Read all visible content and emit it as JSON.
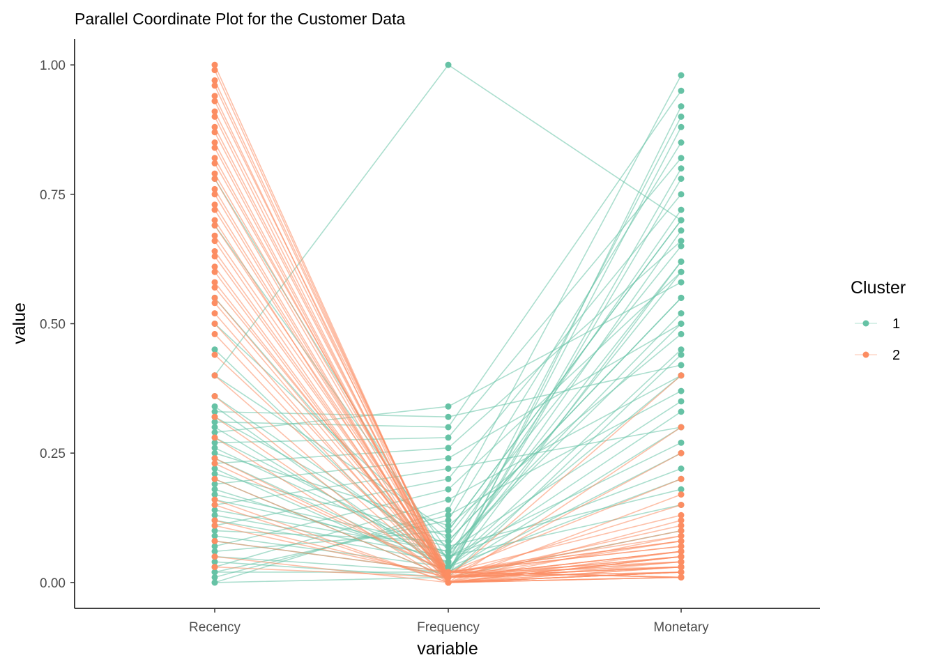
{
  "chart_data": {
    "type": "line",
    "subtype": "parallel-coordinates",
    "title": "Parallel Coordinate Plot for the Customer Data",
    "xlabel": "variable",
    "ylabel": "value",
    "categories": [
      "Recency",
      "Frequency",
      "Monetary"
    ],
    "ylim": [
      -0.05,
      1.05
    ],
    "yticks": [
      0.0,
      0.25,
      0.5,
      0.75,
      1.0
    ],
    "ytick_labels": [
      "0.00",
      "0.25",
      "0.50",
      "0.75",
      "1.00"
    ],
    "grid": false,
    "legend": {
      "title": "Cluster",
      "position": "right",
      "entries": [
        {
          "label": "1",
          "color": "#66c2a5"
        },
        {
          "label": "2",
          "color": "#fc8d62"
        }
      ]
    },
    "series": [
      {
        "name": "1",
        "color": "#66c2a5",
        "lines": [
          [
            0.34,
            0.02,
            0.25
          ],
          [
            0.3,
            0.03,
            0.45
          ],
          [
            0.26,
            0.05,
            0.62
          ],
          [
            0.22,
            0.02,
            0.78
          ],
          [
            0.18,
            0.04,
            0.9
          ],
          [
            0.14,
            0.06,
            0.35
          ],
          [
            0.1,
            0.08,
            0.55
          ],
          [
            0.06,
            0.1,
            0.7
          ],
          [
            0.02,
            0.12,
            0.85
          ],
          [
            0.0,
            0.14,
            0.98
          ],
          [
            0.03,
            0.16,
            0.4
          ],
          [
            0.07,
            0.18,
            0.6
          ],
          [
            0.11,
            0.2,
            0.75
          ],
          [
            0.15,
            0.22,
            0.3
          ],
          [
            0.19,
            0.24,
            0.5
          ],
          [
            0.23,
            0.26,
            0.66
          ],
          [
            0.27,
            0.28,
            0.82
          ],
          [
            0.31,
            0.3,
            0.95
          ],
          [
            0.33,
            0.32,
            0.42
          ],
          [
            0.29,
            0.34,
            0.58
          ],
          [
            0.05,
            0.02,
            0.88
          ],
          [
            0.09,
            0.03,
            0.2
          ],
          [
            0.13,
            0.05,
            0.15
          ],
          [
            0.17,
            0.07,
            0.72
          ],
          [
            0.21,
            0.09,
            0.65
          ],
          [
            0.25,
            0.11,
            0.48
          ],
          [
            0.01,
            0.13,
            0.37
          ],
          [
            0.04,
            0.01,
            0.92
          ],
          [
            0.08,
            0.02,
            0.8
          ],
          [
            0.12,
            0.04,
            0.68
          ],
          [
            0.16,
            0.06,
            0.52
          ],
          [
            0.2,
            0.01,
            0.44
          ],
          [
            0.24,
            0.03,
            0.33
          ],
          [
            0.28,
            0.05,
            0.27
          ],
          [
            0.32,
            0.07,
            0.18
          ],
          [
            0.78,
            0.04,
            0.6
          ],
          [
            0.69,
            0.06,
            0.5
          ],
          [
            0.55,
            0.03,
            0.4
          ],
          [
            0.5,
            0.08,
            0.55
          ],
          [
            0.45,
            0.02,
            0.3
          ],
          [
            0.4,
            0.1,
            0.7
          ],
          [
            0.36,
            0.05,
            0.22
          ],
          [
            0.02,
            0.02,
            0.62
          ],
          [
            0.0,
            0.01,
            0.1
          ],
          [
            0.4,
            1.0,
            0.7
          ]
        ]
      },
      {
        "name": "2",
        "color": "#fc8d62",
        "lines": [
          [
            1.0,
            0.0,
            0.02
          ],
          [
            0.97,
            0.01,
            0.05
          ],
          [
            0.94,
            0.0,
            0.01
          ],
          [
            0.91,
            0.02,
            0.08
          ],
          [
            0.88,
            0.01,
            0.03
          ],
          [
            0.85,
            0.0,
            0.12
          ],
          [
            0.82,
            0.01,
            0.04
          ],
          [
            0.79,
            0.02,
            0.07
          ],
          [
            0.76,
            0.0,
            0.02
          ],
          [
            0.73,
            0.01,
            0.1
          ],
          [
            0.7,
            0.0,
            0.05
          ],
          [
            0.67,
            0.02,
            0.01
          ],
          [
            0.64,
            0.01,
            0.15
          ],
          [
            0.61,
            0.0,
            0.03
          ],
          [
            0.58,
            0.01,
            0.06
          ],
          [
            0.55,
            0.02,
            0.09
          ],
          [
            0.52,
            0.0,
            0.02
          ],
          [
            0.5,
            0.01,
            0.04
          ],
          [
            0.48,
            0.0,
            0.17
          ],
          [
            0.44,
            0.02,
            0.03
          ],
          [
            0.4,
            0.01,
            0.06
          ],
          [
            0.36,
            0.0,
            0.02
          ],
          [
            0.32,
            0.01,
            0.11
          ],
          [
            0.28,
            0.0,
            0.04
          ],
          [
            0.24,
            0.02,
            0.08
          ],
          [
            0.2,
            0.01,
            0.03
          ],
          [
            0.16,
            0.0,
            0.05
          ],
          [
            0.12,
            0.01,
            0.02
          ],
          [
            0.08,
            0.02,
            0.07
          ],
          [
            0.05,
            0.0,
            0.01
          ],
          [
            0.03,
            0.01,
            0.4
          ],
          [
            0.99,
            0.0,
            0.06
          ],
          [
            0.96,
            0.01,
            0.03
          ],
          [
            0.93,
            0.02,
            0.01
          ],
          [
            0.9,
            0.0,
            0.09
          ],
          [
            0.87,
            0.01,
            0.02
          ],
          [
            0.84,
            0.0,
            0.05
          ],
          [
            0.81,
            0.02,
            0.13
          ],
          [
            0.78,
            0.01,
            0.03
          ],
          [
            0.75,
            0.0,
            0.01
          ],
          [
            0.72,
            0.01,
            0.06
          ],
          [
            0.69,
            0.02,
            0.04
          ],
          [
            0.66,
            0.0,
            0.02
          ],
          [
            0.63,
            0.01,
            0.08
          ],
          [
            0.6,
            0.0,
            0.03
          ],
          [
            0.57,
            0.02,
            0.01
          ],
          [
            0.54,
            0.01,
            0.05
          ],
          [
            0.15,
            0.0,
            0.3
          ],
          [
            0.11,
            0.01,
            0.25
          ],
          [
            0.23,
            0.02,
            0.2
          ]
        ]
      }
    ]
  }
}
